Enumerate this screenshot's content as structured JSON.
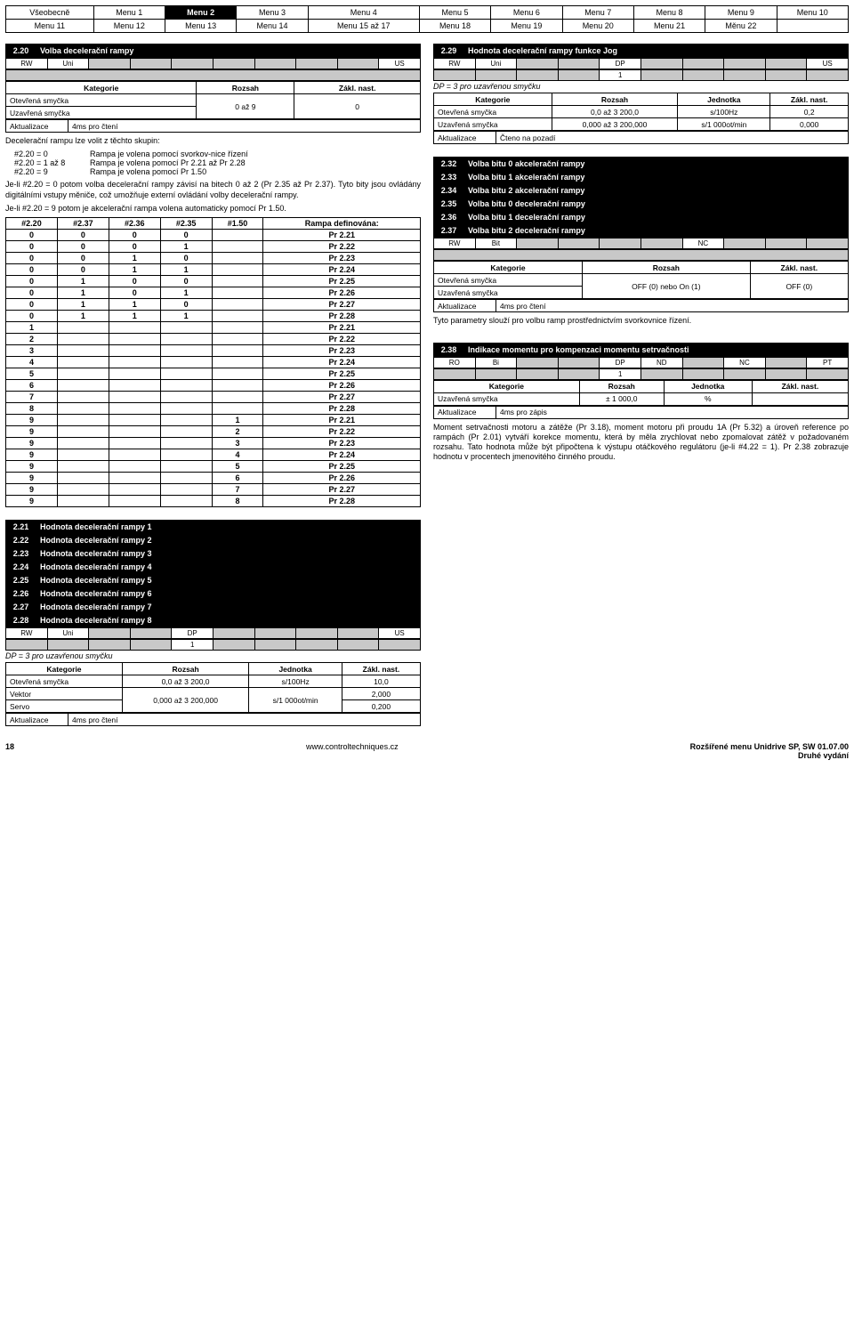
{
  "menu": {
    "row1": [
      "Všeobecně",
      "Menu 1",
      "Menu 2",
      "Menu 3",
      "Menu 4",
      "Menu 5",
      "Menu 6",
      "Menu 7",
      "Menu 8",
      "Menu 9",
      "Menu 10"
    ],
    "row2": [
      "Menu 11",
      "Menu 12",
      "Menu 13",
      "Menu 14",
      "Menu 15 až 17",
      "Menu 18",
      "Menu 19",
      "Menu 20",
      "Menu 21",
      "Měnu 22",
      ""
    ],
    "active": "Menu 2"
  },
  "p220": {
    "num": "2.20",
    "title": "Volba decelerační rampy",
    "attrs": [
      "RW",
      "Uni",
      "",
      "",
      "",
      "",
      "",
      "",
      "",
      "US"
    ],
    "spec_headers": [
      "Kategorie",
      "Rozsah",
      "Zákl. nast."
    ],
    "spec_rows": [
      [
        "Otevřená smyčka",
        "0 až 9",
        "0"
      ],
      [
        "Uzavřená smyčka",
        "",
        ""
      ]
    ],
    "update": [
      "Aktualizace",
      "4ms pro čtení"
    ],
    "para1": "Decelerační rampu lze volit z těchto skupin:",
    "opt1a": "#2.20 = 0",
    "opt1b": "Rampa je volena pomocí svorkov-nice řízení",
    "opt2a": "#2.20 = 1 až 8",
    "opt2b": "Rampa je volena pomocí Pr 2.21 až Pr 2.28",
    "opt3a": "#2.20 = 9",
    "opt3b": "Rampa je volena pomocí Pr 1.50",
    "para2": "Je-li #2.20 = 0 potom volba decelerační rampy závisí na bitech 0 až 2 (Pr 2.35 až Pr 2.37). Tyto bity jsou ovládány digitálními vstupy měniče, což umožňuje externí ovládání volby decelerační rampy.",
    "para3": "Je-li #2.20 = 9 potom je akcelerační rampa volena automaticky pomocí Pr 1.50.",
    "rt_headers": [
      "#2.20",
      "#2.37",
      "#2.36",
      "#2.35",
      "#1.50",
      "Rampa definována:"
    ],
    "rt_rows": [
      [
        "0",
        "0",
        "0",
        "0",
        "",
        "Pr 2.21"
      ],
      [
        "0",
        "0",
        "0",
        "1",
        "",
        "Pr 2.22"
      ],
      [
        "0",
        "0",
        "1",
        "0",
        "",
        "Pr 2.23"
      ],
      [
        "0",
        "0",
        "1",
        "1",
        "",
        "Pr 2.24"
      ],
      [
        "0",
        "1",
        "0",
        "0",
        "",
        "Pr 2.25"
      ],
      [
        "0",
        "1",
        "0",
        "1",
        "",
        "Pr 2.26"
      ],
      [
        "0",
        "1",
        "1",
        "0",
        "",
        "Pr 2.27"
      ],
      [
        "0",
        "1",
        "1",
        "1",
        "",
        "Pr 2.28"
      ],
      [
        "1",
        "",
        "",
        "",
        "",
        "Pr 2.21"
      ],
      [
        "2",
        "",
        "",
        "",
        "",
        "Pr 2.22"
      ],
      [
        "3",
        "",
        "",
        "",
        "",
        "Pr 2.23"
      ],
      [
        "4",
        "",
        "",
        "",
        "",
        "Pr 2.24"
      ],
      [
        "5",
        "",
        "",
        "",
        "",
        "Pr 2.25"
      ],
      [
        "6",
        "",
        "",
        "",
        "",
        "Pr 2.26"
      ],
      [
        "7",
        "",
        "",
        "",
        "",
        "Pr 2.27"
      ],
      [
        "8",
        "",
        "",
        "",
        "",
        "Pr 2.28"
      ],
      [
        "9",
        "",
        "",
        "",
        "1",
        "Pr 2.21"
      ],
      [
        "9",
        "",
        "",
        "",
        "2",
        "Pr 2.22"
      ],
      [
        "9",
        "",
        "",
        "",
        "3",
        "Pr 2.23"
      ],
      [
        "9",
        "",
        "",
        "",
        "4",
        "Pr 2.24"
      ],
      [
        "9",
        "",
        "",
        "",
        "5",
        "Pr 2.25"
      ],
      [
        "9",
        "",
        "",
        "",
        "6",
        "Pr 2.26"
      ],
      [
        "9",
        "",
        "",
        "",
        "7",
        "Pr 2.27"
      ],
      [
        "9",
        "",
        "",
        "",
        "8",
        "Pr 2.28"
      ]
    ]
  },
  "p229": {
    "num": "2.29",
    "title": "Hodnota decelerační rampy funkce Jog",
    "attrs": [
      "RW",
      "Uni",
      "",
      "",
      "DP",
      "",
      "",
      "",
      "",
      "US"
    ],
    "attr_val": "1",
    "note": "DP = 3 pro uzavřenou smyčku",
    "spec_headers": [
      "Kategorie",
      "Rozsah",
      "Jednotka",
      "Zákl. nast."
    ],
    "spec_rows": [
      [
        "Otevřená smyčka",
        "0,0 až 3 200,0",
        "s/100Hz",
        "0,2"
      ],
      [
        "Uzavřená smyčka",
        "0,000 až 3 200,000",
        "s/1 000ot/min",
        "0,000"
      ]
    ],
    "update": [
      "Aktualizace",
      "Čteno na pozadí"
    ]
  },
  "p232_37": {
    "rows": [
      [
        "2.32",
        "Volba bitu 0 akcelerační rampy"
      ],
      [
        "2.33",
        "Volba bitu 1 akcelerační rampy"
      ],
      [
        "2.34",
        "Volba bitu 2 akcelerační rampy"
      ],
      [
        "2.35",
        "Volba bitu 0 decelerační rampy"
      ],
      [
        "2.36",
        "Volba bitu 1 decelerační rampy"
      ],
      [
        "2.37",
        "Volba bitu 2 decelerační rampy"
      ]
    ],
    "attrs": [
      "RW",
      "Bit",
      "",
      "",
      "",
      "",
      "NC",
      "",
      "",
      ""
    ],
    "spec_headers": [
      "Kategorie",
      "Rozsah",
      "Zákl. nast."
    ],
    "spec_rows": [
      [
        "Otevřená smyčka",
        "OFF (0) nebo On (1)",
        "OFF (0)"
      ],
      [
        "Uzavřená smyčka",
        "",
        ""
      ]
    ],
    "update": [
      "Aktualizace",
      "4ms pro čtení"
    ],
    "para": "Tyto parametry slouží pro volbu ramp prostřednictvím svorkovnice řízení."
  },
  "p238": {
    "num": "2.38",
    "title": "Indikace momentu pro kompenzaci momentu setrvačnosti",
    "attrs": [
      "RO",
      "Bi",
      "",
      "",
      "DP",
      "ND",
      "",
      "NC",
      "",
      "PT"
    ],
    "attr_val": "1",
    "spec_headers": [
      "Kategorie",
      "Rozsah",
      "Jednotka",
      "Zákl. nast."
    ],
    "spec_rows": [
      [
        "Uzavřená smyčka",
        "± 1 000,0",
        "%",
        ""
      ]
    ],
    "update": [
      "Aktualizace",
      "4ms pro zápis"
    ],
    "para": "Moment setrvačnosti motoru a zátěže (Pr 3.18), moment motoru při proudu 1A (Pr 5.32) a úroveň reference po rampách (Pr 2.01) vytváří korekce momentu, která by měla zrychlovat nebo zpomalovat zátěž v požadovaném rozsahu. Tato hodnota může být připočtena k výstupu otáčkového regulátoru (je-li #4.22 = 1). Pr 2.38 zobrazuje hodnotu v procentech jmenovitého činného proudu."
  },
  "p221_28": {
    "rows": [
      [
        "2.21",
        "Hodnota decelerační rampy 1"
      ],
      [
        "2.22",
        "Hodnota decelerační rampy 2"
      ],
      [
        "2.23",
        "Hodnota decelerační rampy 3"
      ],
      [
        "2.24",
        "Hodnota decelerační rampy 4"
      ],
      [
        "2.25",
        "Hodnota decelerační rampy 5"
      ],
      [
        "2.26",
        "Hodnota decelerační rampy 6"
      ],
      [
        "2.27",
        "Hodnota decelerační rampy 7"
      ],
      [
        "2.28",
        "Hodnota decelerační rampy 8"
      ]
    ],
    "attrs": [
      "RW",
      "Uni",
      "",
      "",
      "DP",
      "",
      "",
      "",
      "",
      "US"
    ],
    "attr_val": "1",
    "note": "DP = 3 pro uzavřenou smyčku",
    "spec_headers": [
      "Kategorie",
      "Rozsah",
      "Jednotka",
      "Zákl. nast."
    ],
    "spec_rows": [
      [
        "Otevřená smyčka",
        "0,0 až 3 200,0",
        "s/100Hz",
        "10,0"
      ],
      [
        "Vektor",
        "0,000 až 3 200,000",
        "s/1 000ot/min",
        "2,000"
      ],
      [
        "Servo",
        "",
        "",
        "0,200"
      ]
    ],
    "update": [
      "Aktualizace",
      "4ms pro čtení"
    ]
  },
  "footer": {
    "page": "18",
    "url": "www.controltechniques.cz",
    "r1": "Rozšířené menu Unidrive SP, SW 01.07.00",
    "r2": "Druhé vydání"
  }
}
